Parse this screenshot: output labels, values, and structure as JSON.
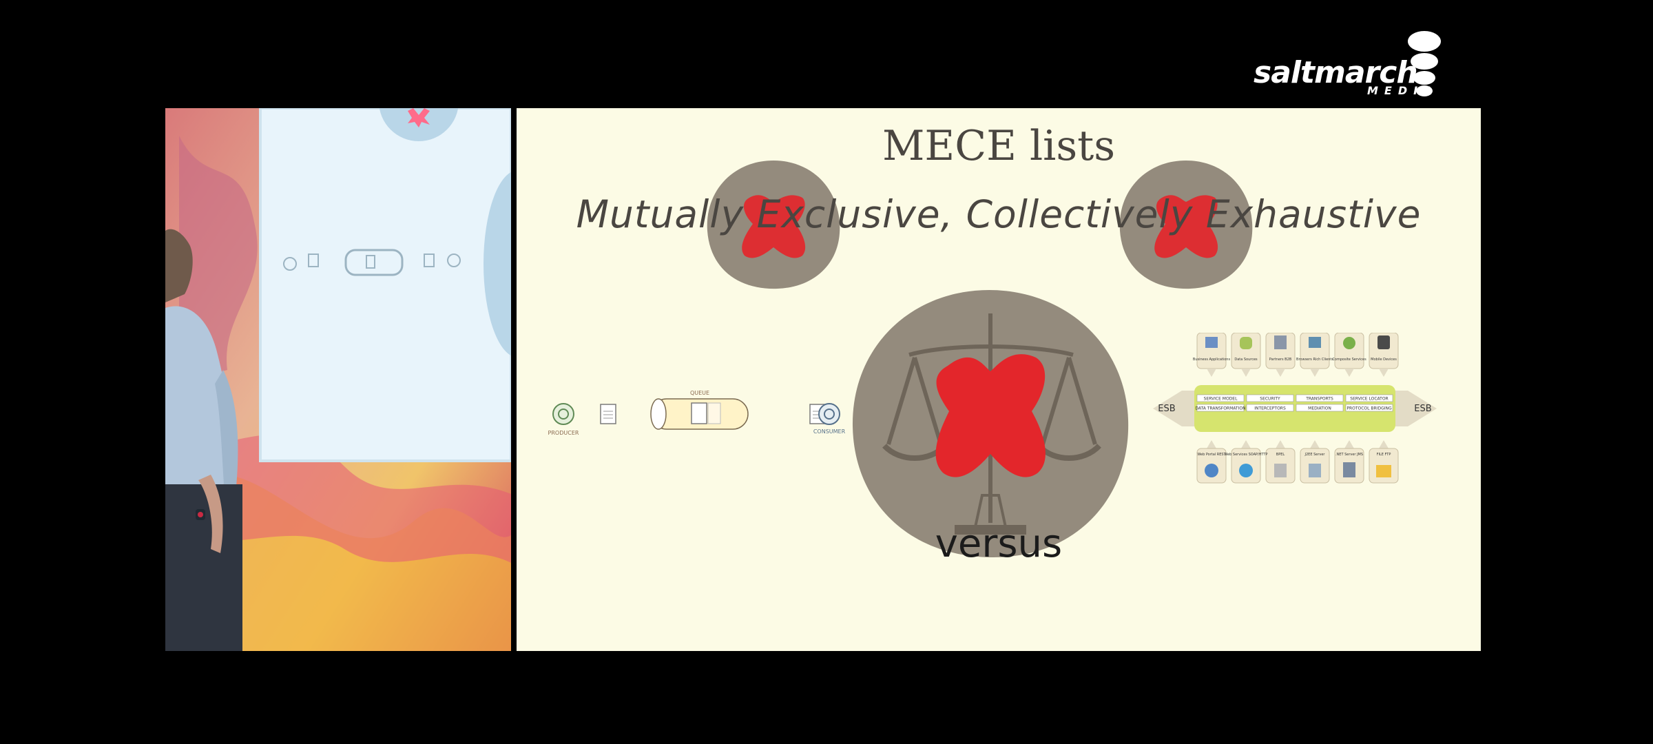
{
  "logo": {
    "word": "saltmarch",
    "sub": "MEDIA"
  },
  "slide": {
    "title": "MECE lists",
    "subtitle": "Mutually Exclusive, Collectively Exhaustive",
    "versus": "versus",
    "queue": {
      "producer": "PRODUCER",
      "consumer": "CONSUMER",
      "queue": "QUEUE"
    },
    "esb": {
      "left_label": "ESB",
      "right_label": "ESB",
      "top_services": [
        "Business Applications",
        "Data Sources",
        "Partners B2B",
        "Browsers Rich Clients",
        "Composite Services",
        "Mobile Devices"
      ],
      "middle_row1": [
        "SERVICE MODEL",
        "SECURITY",
        "TRANSPORTS",
        "SERVICE LOCATOR"
      ],
      "middle_row2": [
        "DATA TRANSFORMATION",
        "INTERCEPTORS",
        "MEDIATION",
        "PROTOCOL BRIDGING"
      ],
      "bottom_services": [
        "Web Portal REST",
        "Web Services SOAP/HTTP",
        "BPEL",
        "J2EE Server",
        ".NET Server JMS",
        "FILE FTP"
      ]
    },
    "icons": [
      "scales-of-justice-icon",
      "red-x-shape-icon",
      "gear-icon",
      "document-icon",
      "queue-cylinder-icon"
    ]
  },
  "colors": {
    "slide_bg": "#fcfbe5",
    "blob_gray": "#948b7d",
    "red_x": "#e3262b",
    "text_dark": "#4a4641",
    "esb_green": "#d6e46e"
  }
}
